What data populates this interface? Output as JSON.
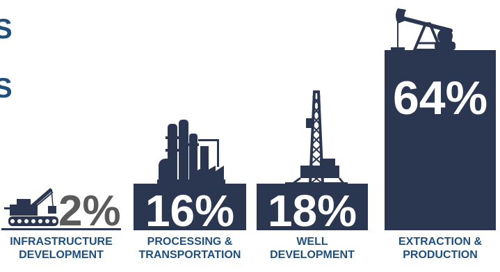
{
  "page": {
    "cut_text_1": "S",
    "cut_text_2": "S"
  },
  "colors": {
    "bar": "#2b3650",
    "label": "#1f4f7d",
    "small_pct": "#5b5b5b",
    "white": "#ffffff"
  },
  "chart_data": {
    "type": "bar",
    "categories": [
      "INFRASTRUCTURE DEVELOPMENT",
      "PROCESSING & TRANSPORTATION",
      "WELL DEVELOPMENT",
      "EXTRACTION & PRODUCTION"
    ],
    "category_lines": [
      [
        "INFRASTRUCTURE",
        "DEVELOPMENT"
      ],
      [
        "PROCESSING &",
        "TRANSPORTATION"
      ],
      [
        "WELL",
        "DEVELOPMENT"
      ],
      [
        "EXTRACTION &",
        "PRODUCTION"
      ]
    ],
    "values": [
      2,
      16,
      18,
      64
    ],
    "value_labels": [
      "2%",
      "16%",
      "18%",
      "64%"
    ],
    "icons": [
      "crane-icon",
      "refinery-icon",
      "drilling-rig-icon",
      "pumpjack-icon"
    ],
    "ylim": [
      0,
      64
    ],
    "title": "",
    "xlabel": "",
    "ylabel": ""
  }
}
